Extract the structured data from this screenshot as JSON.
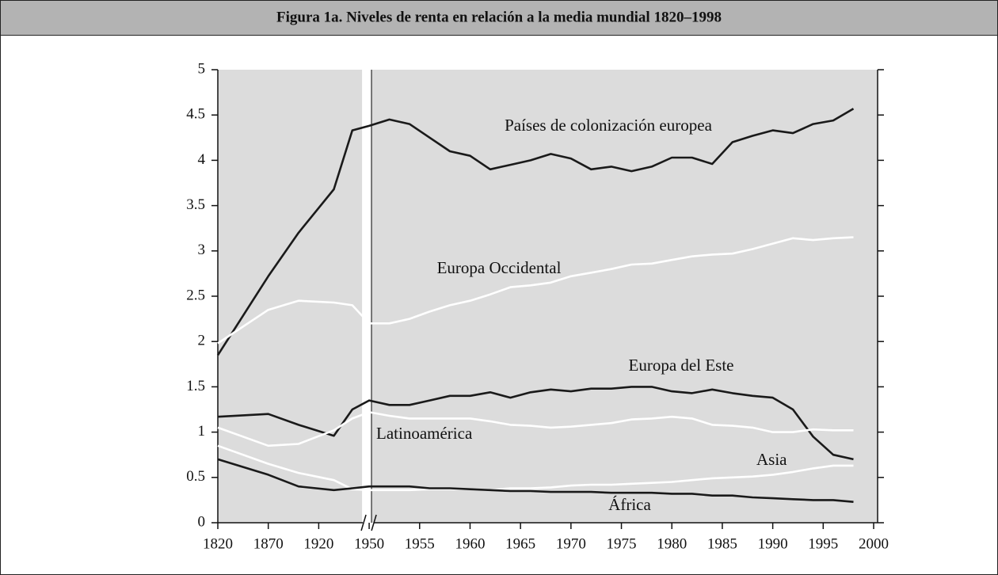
{
  "chart_data": {
    "type": "line",
    "title": "Figura 1a. Niveles de renta en relación a la media mundial 1820–1998",
    "x": [
      1820,
      1870,
      1900,
      1929,
      1940,
      1950,
      1952,
      1954,
      1956,
      1958,
      1960,
      1962,
      1964,
      1966,
      1968,
      1970,
      1972,
      1974,
      1976,
      1978,
      1980,
      1982,
      1984,
      1986,
      1988,
      1990,
      1992,
      1994,
      1996,
      1998
    ],
    "series": [
      {
        "name": "Países de colonización europea",
        "color": "#1a1a1a",
        "values": [
          1.85,
          2.72,
          3.2,
          3.68,
          4.33,
          4.38,
          4.45,
          4.4,
          4.25,
          4.1,
          4.05,
          3.9,
          3.95,
          4.0,
          4.07,
          4.02,
          3.9,
          3.93,
          3.88,
          3.93,
          4.03,
          4.03,
          3.96,
          4.2,
          4.27,
          4.33,
          4.3,
          4.4,
          4.44,
          4.57
        ]
      },
      {
        "name": "Europa Occidental",
        "color": "#ffffff",
        "values": [
          1.98,
          2.35,
          2.45,
          2.43,
          2.4,
          2.2,
          2.2,
          2.25,
          2.33,
          2.4,
          2.45,
          2.52,
          2.6,
          2.62,
          2.65,
          2.72,
          2.76,
          2.8,
          2.85,
          2.86,
          2.9,
          2.94,
          2.96,
          2.97,
          3.02,
          3.08,
          3.14,
          3.12,
          3.14,
          3.15
        ]
      },
      {
        "name": "Europa del Este",
        "color": "#1a1a1a",
        "values": [
          1.17,
          1.2,
          1.08,
          0.96,
          1.25,
          1.35,
          1.3,
          1.3,
          1.35,
          1.4,
          1.4,
          1.44,
          1.38,
          1.44,
          1.47,
          1.45,
          1.48,
          1.48,
          1.5,
          1.5,
          1.45,
          1.43,
          1.47,
          1.43,
          1.4,
          1.38,
          1.25,
          0.95,
          0.75,
          0.7
        ]
      },
      {
        "name": "Latinoamérica",
        "color": "#ffffff",
        "values": [
          1.05,
          0.85,
          0.87,
          1.02,
          1.15,
          1.22,
          1.18,
          1.15,
          1.15,
          1.15,
          1.15,
          1.12,
          1.08,
          1.07,
          1.05,
          1.06,
          1.08,
          1.1,
          1.14,
          1.15,
          1.17,
          1.15,
          1.08,
          1.07,
          1.05,
          1.0,
          1.0,
          1.03,
          1.02,
          1.02
        ]
      },
      {
        "name": "Asia",
        "color": "#ffffff",
        "values": [
          0.85,
          0.65,
          0.55,
          0.47,
          0.37,
          0.36,
          0.36,
          0.36,
          0.37,
          0.37,
          0.37,
          0.36,
          0.38,
          0.38,
          0.39,
          0.41,
          0.42,
          0.42,
          0.43,
          0.44,
          0.45,
          0.47,
          0.49,
          0.5,
          0.51,
          0.53,
          0.56,
          0.6,
          0.63,
          0.63
        ]
      },
      {
        "name": "África",
        "color": "#1a1a1a",
        "values": [
          0.7,
          0.53,
          0.4,
          0.36,
          0.38,
          0.4,
          0.4,
          0.4,
          0.38,
          0.38,
          0.37,
          0.36,
          0.35,
          0.35,
          0.34,
          0.34,
          0.34,
          0.33,
          0.33,
          0.33,
          0.32,
          0.32,
          0.3,
          0.3,
          0.28,
          0.27,
          0.26,
          0.25,
          0.25,
          0.23
        ]
      }
    ],
    "xticks": [
      1820,
      1870,
      1920,
      1950,
      1955,
      1960,
      1965,
      1970,
      1975,
      1980,
      1985,
      1990,
      1995,
      2000
    ],
    "ylim": [
      0,
      5
    ],
    "yticks": [
      0,
      0.5,
      1,
      1.5,
      2,
      2.5,
      3,
      3.5,
      4,
      4.5,
      5
    ]
  }
}
